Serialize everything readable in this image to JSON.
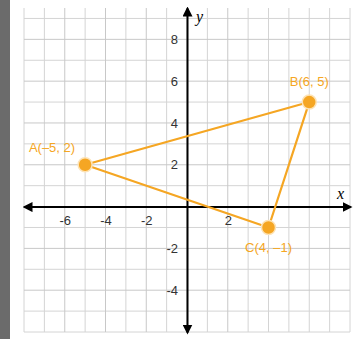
{
  "chart_data": {
    "type": "polygon",
    "x_label": "x",
    "y_label": "y",
    "points": [
      {
        "label": "A(–5, 2)",
        "x": -5,
        "y": 2
      },
      {
        "label": "B(6, 5)",
        "x": 6,
        "y": 5
      },
      {
        "label": "C(4, –1)",
        "x": 4,
        "y": -1
      }
    ],
    "color": "#f5a623",
    "xlim": [
      -8,
      8
    ],
    "ylim": [
      -6,
      9.5
    ],
    "xticks": [
      -6,
      -4,
      -2,
      2
    ],
    "yticks": [
      -4,
      -2,
      2,
      4,
      6,
      8
    ],
    "grid": true
  }
}
